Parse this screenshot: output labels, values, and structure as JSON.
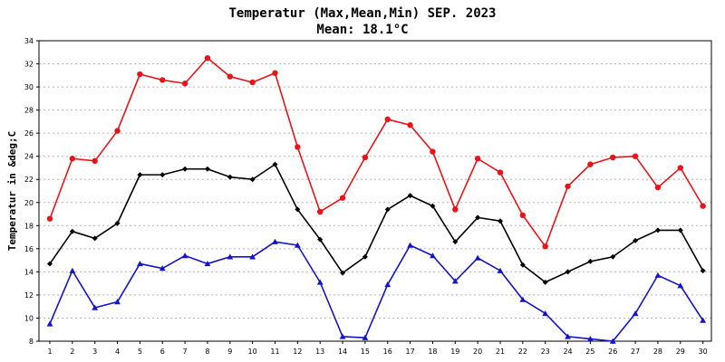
{
  "chart_data": {
    "type": "line",
    "title": "Temperatur (Max,Mean,Min) SEP. 2023",
    "subtitle": "Mean: 18.1°C",
    "ylabel": "Temperatur in &deg;C",
    "xlabel": "",
    "ylim": [
      8,
      34
    ],
    "y_ticks": [
      8,
      10,
      12,
      14,
      16,
      18,
      20,
      22,
      24,
      26,
      28,
      30,
      32,
      34
    ],
    "grid": true,
    "legend": "none",
    "x": [
      1,
      2,
      3,
      4,
      5,
      6,
      7,
      8,
      9,
      10,
      11,
      12,
      13,
      14,
      15,
      16,
      17,
      18,
      19,
      20,
      21,
      22,
      23,
      24,
      25,
      26,
      27,
      28,
      29,
      30
    ],
    "series": [
      {
        "key": "max",
        "color": "#e8141c",
        "marker": "circle",
        "values": [
          18.6,
          23.8,
          23.6,
          26.2,
          31.1,
          30.6,
          30.3,
          32.5,
          30.9,
          30.4,
          31.2,
          24.8,
          19.2,
          20.4,
          23.9,
          27.2,
          26.7,
          24.4,
          19.4,
          23.8,
          22.6,
          18.9,
          16.2,
          21.4,
          23.3,
          23.9,
          24.0,
          21.3,
          23.0,
          19.7
        ]
      },
      {
        "key": "mean",
        "color": "#000000",
        "marker": "diamond",
        "values": [
          14.7,
          17.5,
          16.9,
          18.2,
          22.4,
          22.4,
          22.9,
          22.9,
          22.2,
          22.0,
          23.3,
          19.4,
          16.8,
          13.9,
          15.3,
          19.4,
          20.6,
          19.7,
          16.6,
          18.7,
          18.4,
          14.6,
          13.1,
          14.0,
          14.9,
          15.3,
          16.7,
          17.6,
          17.6,
          14.1
        ]
      },
      {
        "key": "min",
        "color": "#1414c8",
        "marker": "triangle",
        "values": [
          9.5,
          14.1,
          10.9,
          11.4,
          14.7,
          14.3,
          15.4,
          14.7,
          15.3,
          15.3,
          16.6,
          16.3,
          13.1,
          8.4,
          8.3,
          12.9,
          16.3,
          15.4,
          13.2,
          15.2,
          14.1,
          11.6,
          10.4,
          8.4,
          8.2,
          8.0,
          10.4,
          13.7,
          12.8,
          9.8
        ]
      }
    ]
  }
}
